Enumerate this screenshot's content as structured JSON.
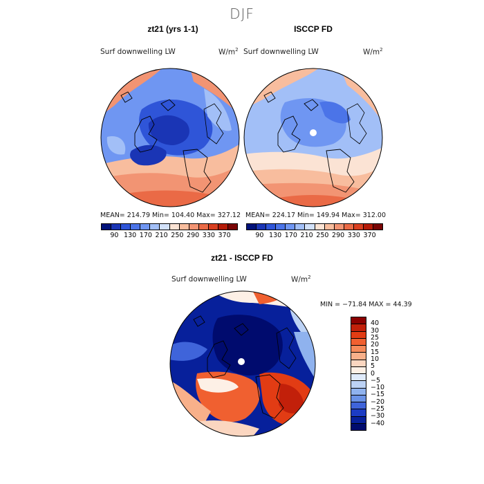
{
  "season": "DJF",
  "variable_label": "Surf downwelling LW",
  "unit_base": "W/m",
  "unit_exp": "2",
  "panels": {
    "model": {
      "title": "zt21 (yrs 1-1)",
      "stats": "MEAN= 214.79   Min= 104.40   Max= 327.12"
    },
    "obs": {
      "title": "ISCCP FD",
      "stats": "MEAN= 224.17   Min= 149.94   Max= 312.00"
    },
    "diff": {
      "title": "zt21 - ISCCP FD",
      "stats": "MIN = −71.84  MAX =  44.39"
    }
  },
  "abs_colorbar": {
    "ticks": [
      "90",
      "130",
      "170",
      "210",
      "250",
      "290",
      "330",
      "370"
    ],
    "colors": [
      "#00127a",
      "#1a35b5",
      "#2f55d8",
      "#4b74e8",
      "#6f96f2",
      "#a2bff7",
      "#d2e1fa",
      "#fbe3d4",
      "#f8bd9e",
      "#f29473",
      "#ea6a46",
      "#d93f20",
      "#b51b08",
      "#7a0505"
    ]
  },
  "diff_colorbar": {
    "ticks": [
      "40",
      "30",
      "25",
      "20",
      "15",
      "10",
      "5",
      "0",
      "−5",
      "−10",
      "−15",
      "−20",
      "−25",
      "−30",
      "−40"
    ],
    "colors": [
      "#8b0000",
      "#c2200a",
      "#e23c14",
      "#f06030",
      "#f58a5a",
      "#f8b08a",
      "#fbd6c0",
      "#fdf0e6",
      "#e0ebfb",
      "#bcd2f5",
      "#8fb2ee",
      "#6a92e6",
      "#3f64da",
      "#1c3cc4",
      "#07209b",
      "#000b6e"
    ]
  },
  "chart_data": {
    "type": "heatmap",
    "maps": [
      {
        "name": "zt21 (yrs 1-1)",
        "mean": 214.79,
        "min": 104.4,
        "max": 327.12,
        "projection": "polar stereographic, north pole"
      },
      {
        "name": "ISCCP FD",
        "mean": 224.17,
        "min": 149.94,
        "max": 312.0,
        "projection": "polar stereographic, north pole"
      },
      {
        "name": "zt21 - ISCCP FD",
        "min": -71.84,
        "max": 44.39,
        "projection": "polar stereographic, north pole"
      }
    ],
    "abs_levels": [
      90,
      130,
      170,
      210,
      250,
      290,
      330,
      370
    ],
    "diff_levels": [
      -40,
      -30,
      -25,
      -20,
      -15,
      -10,
      -5,
      0,
      5,
      10,
      15,
      20,
      25,
      30,
      40
    ]
  }
}
